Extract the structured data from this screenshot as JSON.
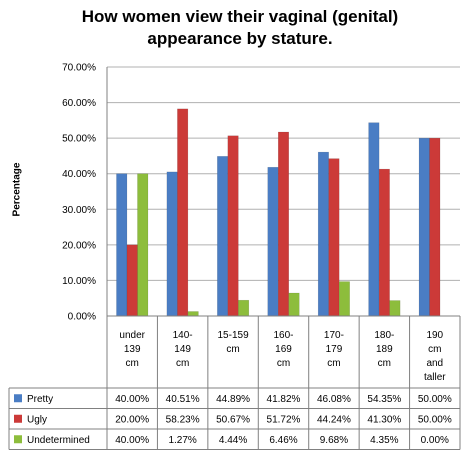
{
  "chart_data": {
    "type": "bar",
    "title": "How women view their vaginal (genital) appearance by stature.",
    "title_lines": [
      "How women view their vaginal (genital)",
      "appearance by stature."
    ],
    "ylabel": "Percentage",
    "xlabel": "",
    "ylim": [
      0,
      70
    ],
    "y_ticks": [
      "0.00%",
      "10.00%",
      "20.00%",
      "30.00%",
      "40.00%",
      "50.00%",
      "60.00%",
      "70.00%"
    ],
    "grid": true,
    "legend": "data-table",
    "categories": [
      "under 139 cm",
      "140-149 cm",
      "15-159 cm",
      "160-169 cm",
      "170-179 cm",
      "180-189 cm",
      "190 cm and taller"
    ],
    "category_lines": [
      [
        "under",
        "139",
        "cm"
      ],
      [
        "140-",
        "149",
        "cm"
      ],
      [
        "15-159",
        "cm"
      ],
      [
        "160-",
        "169",
        "cm"
      ],
      [
        "170-",
        "179",
        "cm"
      ],
      [
        "180-",
        "189",
        "cm"
      ],
      [
        "190",
        "cm",
        "and",
        "taller"
      ]
    ],
    "series": [
      {
        "name": "Pretty",
        "color": "#4a7dc4",
        "values": [
          40.0,
          40.51,
          44.89,
          41.82,
          46.08,
          54.35,
          50.0
        ],
        "labels": [
          "40.00%",
          "40.51%",
          "44.89%",
          "41.82%",
          "46.08%",
          "54.35%",
          "50.00%"
        ]
      },
      {
        "name": "Ugly",
        "color": "#cc3a38",
        "values": [
          20.0,
          58.23,
          50.67,
          51.72,
          44.24,
          41.3,
          50.0
        ],
        "labels": [
          "20.00%",
          "58.23%",
          "50.67%",
          "51.72%",
          "44.24%",
          "41.30%",
          "50.00%"
        ]
      },
      {
        "name": "Undetermined",
        "color": "#8dbd3c",
        "values": [
          40.0,
          1.27,
          4.44,
          6.46,
          9.68,
          4.35,
          0.0
        ],
        "labels": [
          "40.00%",
          "1.27%",
          "4.44%",
          "6.46%",
          "9.68%",
          "4.35%",
          "0.00%"
        ]
      }
    ]
  }
}
